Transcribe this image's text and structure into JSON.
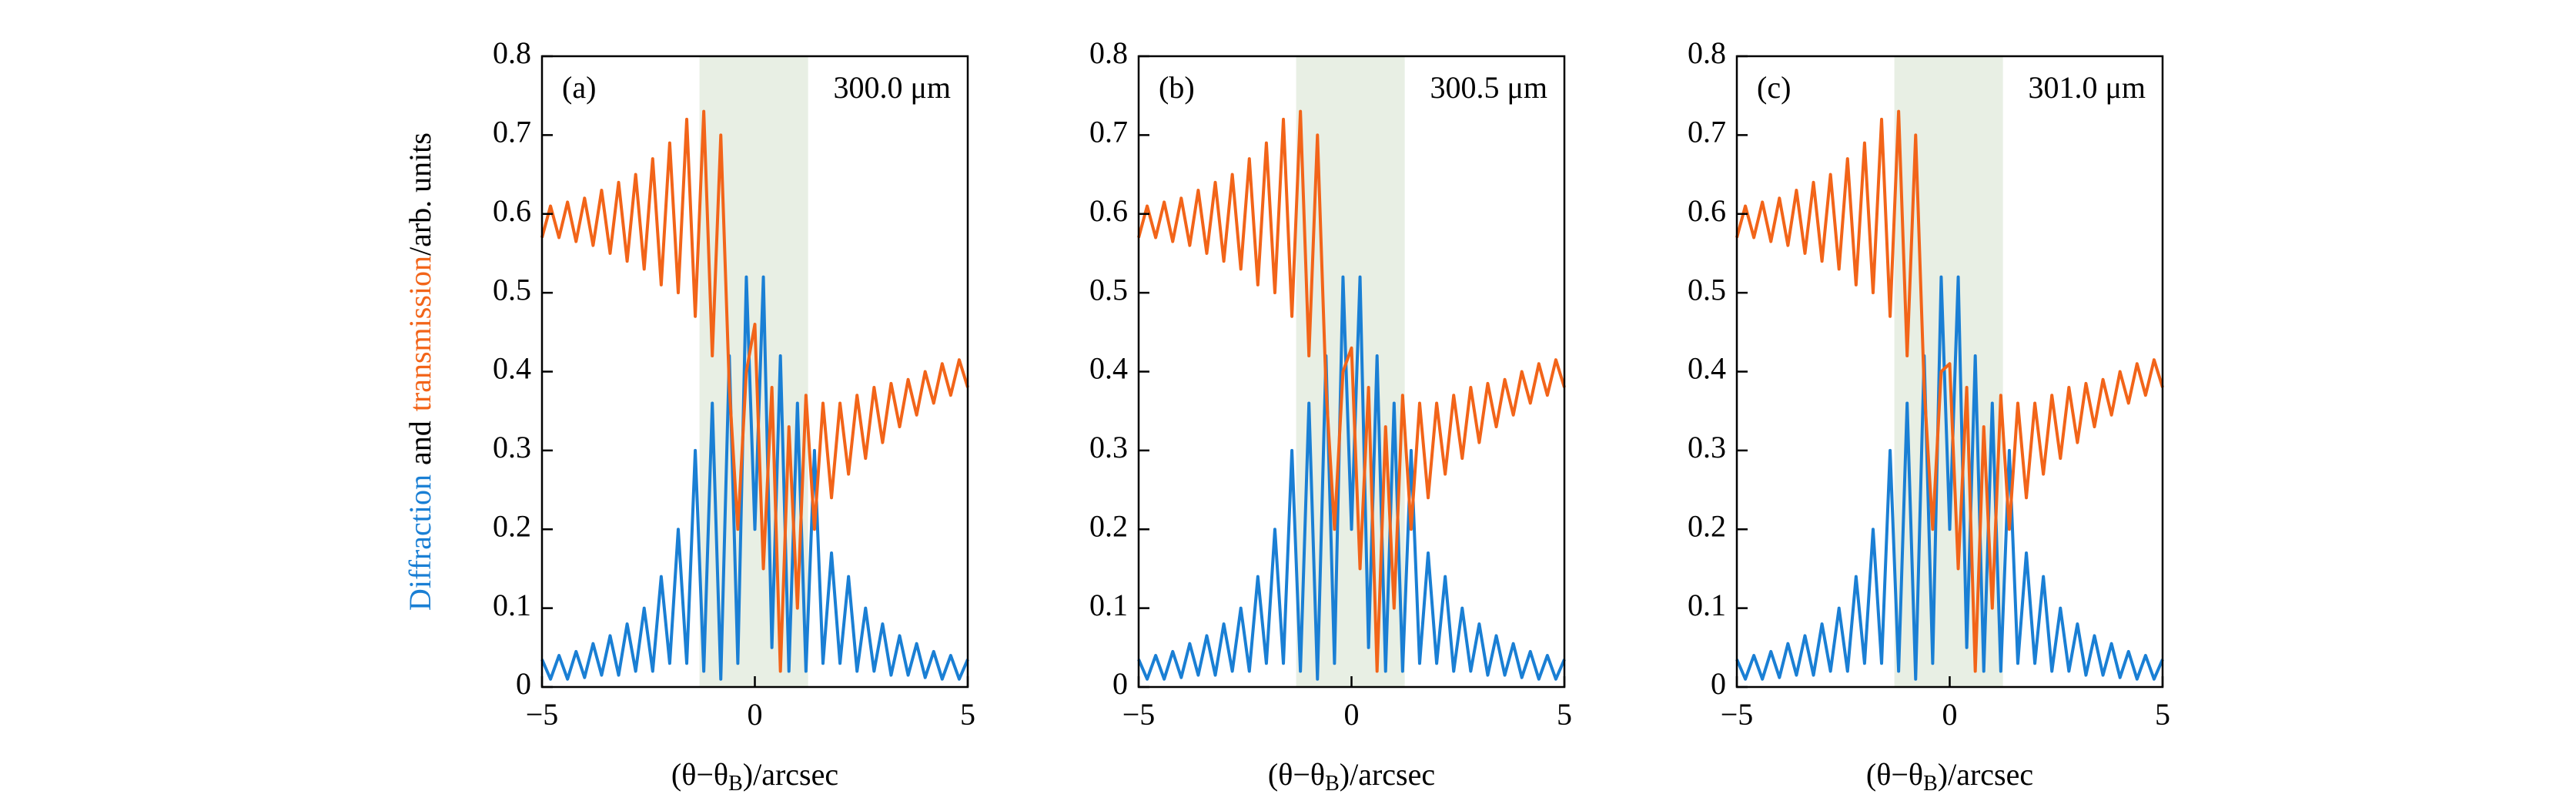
{
  "chart_data": [
    {
      "type": "line",
      "panel_label": "(a)",
      "annotation": "300.0 μm",
      "ylabel": [
        "Diffraction",
        "and",
        "transmission",
        "/arb. units"
      ],
      "xlabel": [
        "(θ−θ",
        "B",
        ")/arcsec"
      ],
      "xlim": [
        -5,
        5
      ],
      "ylim": [
        0,
        0.8
      ],
      "xticks": [
        {
          "value": -5,
          "label": "−5"
        },
        0,
        5
      ],
      "yticks": [
        0,
        0.1,
        0.2,
        0.3,
        0.4,
        0.5,
        0.6,
        0.7,
        0.8
      ],
      "band": [
        -1.3,
        1.25
      ],
      "band_color": "#e8efe4",
      "x": [
        -5,
        -4.8,
        -4.6,
        -4.4,
        -4.2,
        -4,
        -3.8,
        -3.6,
        -3.4,
        -3.2,
        -3,
        -2.8,
        -2.6,
        -2.4,
        -2.2,
        -2,
        -1.8,
        -1.6,
        -1.4,
        -1.2,
        -1,
        -0.8,
        -0.6,
        -0.4,
        -0.2,
        0,
        0.2,
        0.4,
        0.6,
        0.8,
        1,
        1.2,
        1.4,
        1.6,
        1.8,
        2,
        2.2,
        2.4,
        2.6,
        2.8,
        3,
        3.2,
        3.4,
        3.6,
        3.8,
        4,
        4.2,
        4.4,
        4.6,
        4.8,
        5
      ],
      "series": [
        {
          "color": "#1a7fd4",
          "values": [
            0.035,
            0.01,
            0.04,
            0.01,
            0.045,
            0.012,
            0.055,
            0.015,
            0.065,
            0.015,
            0.08,
            0.02,
            0.1,
            0.02,
            0.14,
            0.03,
            0.2,
            0.03,
            0.3,
            0.02,
            0.36,
            0.01,
            0.42,
            0.03,
            0.52,
            0.2,
            0.52,
            0.05,
            0.42,
            0.02,
            0.36,
            0.02,
            0.3,
            0.03,
            0.17,
            0.03,
            0.14,
            0.02,
            0.1,
            0.02,
            0.08,
            0.015,
            0.065,
            0.015,
            0.055,
            0.012,
            0.045,
            0.01,
            0.04,
            0.01,
            0.035
          ]
        },
        {
          "color": "#f26419",
          "values": [
            0.57,
            0.61,
            0.57,
            0.615,
            0.565,
            0.62,
            0.56,
            0.63,
            0.55,
            0.64,
            0.54,
            0.65,
            0.53,
            0.67,
            0.51,
            0.69,
            0.5,
            0.72,
            0.47,
            0.73,
            0.42,
            0.7,
            0.38,
            0.2,
            0.4,
            0.46,
            0.15,
            0.38,
            0.02,
            0.33,
            0.1,
            0.37,
            0.2,
            0.36,
            0.24,
            0.36,
            0.27,
            0.37,
            0.29,
            0.38,
            0.31,
            0.385,
            0.33,
            0.39,
            0.345,
            0.4,
            0.36,
            0.41,
            0.37,
            0.415,
            0.38
          ]
        }
      ]
    },
    {
      "type": "line",
      "panel_label": "(b)",
      "annotation": "300.5 μm",
      "xlabel": [
        "(θ−θ",
        "B",
        ")/arcsec"
      ],
      "xlim": [
        -5,
        5
      ],
      "ylim": [
        0,
        0.8
      ],
      "xticks": [
        {
          "value": -5,
          "label": "−5"
        },
        0,
        5
      ],
      "yticks": [
        0,
        0.1,
        0.2,
        0.3,
        0.4,
        0.5,
        0.6,
        0.7,
        0.8
      ],
      "band": [
        -1.3,
        1.25
      ],
      "band_color": "#e8efe4",
      "x": [
        -5,
        -4.8,
        -4.6,
        -4.4,
        -4.2,
        -4,
        -3.8,
        -3.6,
        -3.4,
        -3.2,
        -3,
        -2.8,
        -2.6,
        -2.4,
        -2.2,
        -2,
        -1.8,
        -1.6,
        -1.4,
        -1.2,
        -1,
        -0.8,
        -0.6,
        -0.4,
        -0.2,
        0,
        0.2,
        0.4,
        0.6,
        0.8,
        1,
        1.2,
        1.4,
        1.6,
        1.8,
        2,
        2.2,
        2.4,
        2.6,
        2.8,
        3,
        3.2,
        3.4,
        3.6,
        3.8,
        4,
        4.2,
        4.4,
        4.6,
        4.8,
        5
      ],
      "series": [
        {
          "color": "#1a7fd4",
          "values": [
            0.035,
            0.01,
            0.04,
            0.01,
            0.045,
            0.012,
            0.055,
            0.015,
            0.065,
            0.015,
            0.08,
            0.02,
            0.1,
            0.02,
            0.14,
            0.03,
            0.2,
            0.03,
            0.3,
            0.02,
            0.36,
            0.01,
            0.42,
            0.03,
            0.52,
            0.2,
            0.52,
            0.05,
            0.42,
            0.02,
            0.36,
            0.02,
            0.3,
            0.03,
            0.17,
            0.03,
            0.14,
            0.02,
            0.1,
            0.02,
            0.08,
            0.015,
            0.065,
            0.015,
            0.055,
            0.012,
            0.045,
            0.01,
            0.04,
            0.01,
            0.035
          ]
        },
        {
          "color": "#f26419",
          "values": [
            0.57,
            0.61,
            0.57,
            0.615,
            0.565,
            0.62,
            0.56,
            0.63,
            0.55,
            0.64,
            0.54,
            0.65,
            0.53,
            0.67,
            0.51,
            0.69,
            0.5,
            0.72,
            0.47,
            0.73,
            0.42,
            0.7,
            0.38,
            0.2,
            0.4,
            0.43,
            0.15,
            0.38,
            0.02,
            0.33,
            0.1,
            0.37,
            0.2,
            0.36,
            0.24,
            0.36,
            0.27,
            0.37,
            0.29,
            0.38,
            0.31,
            0.385,
            0.33,
            0.39,
            0.345,
            0.4,
            0.36,
            0.41,
            0.37,
            0.415,
            0.38
          ]
        }
      ]
    },
    {
      "type": "line",
      "panel_label": "(c)",
      "annotation": "301.0 μm",
      "xlabel": [
        "(θ−θ",
        "B",
        ")/arcsec"
      ],
      "xlim": [
        -5,
        5
      ],
      "ylim": [
        0,
        0.8
      ],
      "xticks": [
        {
          "value": -5,
          "label": "−5"
        },
        0,
        5
      ],
      "yticks": [
        0,
        0.1,
        0.2,
        0.3,
        0.4,
        0.5,
        0.6,
        0.7,
        0.8
      ],
      "band": [
        -1.3,
        1.25
      ],
      "band_color": "#e8efe4",
      "x": [
        -5,
        -4.8,
        -4.6,
        -4.4,
        -4.2,
        -4,
        -3.8,
        -3.6,
        -3.4,
        -3.2,
        -3,
        -2.8,
        -2.6,
        -2.4,
        -2.2,
        -2,
        -1.8,
        -1.6,
        -1.4,
        -1.2,
        -1,
        -0.8,
        -0.6,
        -0.4,
        -0.2,
        0,
        0.2,
        0.4,
        0.6,
        0.8,
        1,
        1.2,
        1.4,
        1.6,
        1.8,
        2,
        2.2,
        2.4,
        2.6,
        2.8,
        3,
        3.2,
        3.4,
        3.6,
        3.8,
        4,
        4.2,
        4.4,
        4.6,
        4.8,
        5
      ],
      "series": [
        {
          "color": "#1a7fd4",
          "values": [
            0.035,
            0.01,
            0.04,
            0.01,
            0.045,
            0.012,
            0.055,
            0.015,
            0.065,
            0.015,
            0.08,
            0.02,
            0.1,
            0.02,
            0.14,
            0.03,
            0.2,
            0.03,
            0.3,
            0.02,
            0.36,
            0.01,
            0.42,
            0.03,
            0.52,
            0.2,
            0.52,
            0.05,
            0.42,
            0.02,
            0.36,
            0.02,
            0.3,
            0.03,
            0.17,
            0.03,
            0.14,
            0.02,
            0.1,
            0.02,
            0.08,
            0.015,
            0.065,
            0.015,
            0.055,
            0.012,
            0.045,
            0.01,
            0.04,
            0.01,
            0.035
          ]
        },
        {
          "color": "#f26419",
          "values": [
            0.57,
            0.61,
            0.57,
            0.615,
            0.565,
            0.62,
            0.56,
            0.63,
            0.55,
            0.64,
            0.54,
            0.65,
            0.53,
            0.67,
            0.51,
            0.69,
            0.5,
            0.72,
            0.47,
            0.73,
            0.42,
            0.7,
            0.38,
            0.2,
            0.4,
            0.41,
            0.15,
            0.38,
            0.02,
            0.33,
            0.1,
            0.37,
            0.2,
            0.36,
            0.24,
            0.36,
            0.27,
            0.37,
            0.29,
            0.38,
            0.31,
            0.385,
            0.33,
            0.39,
            0.345,
            0.4,
            0.36,
            0.41,
            0.37,
            0.415,
            0.38
          ]
        }
      ]
    }
  ]
}
